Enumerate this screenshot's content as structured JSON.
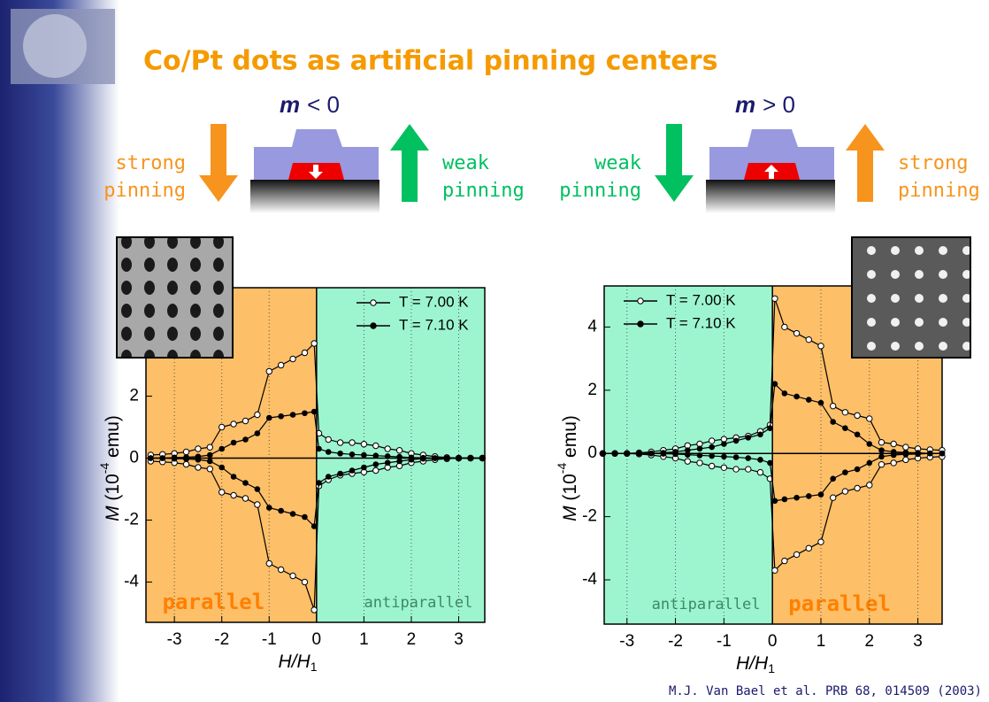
{
  "title": "Co/Pt dots as artificial pinning centers",
  "diagrams": [
    {
      "symbol": "m",
      "relation": "< 0",
      "left": {
        "lines": [
          "strong",
          "pinning"
        ],
        "color": "#f7941d",
        "direction": "down"
      },
      "right": {
        "lines": [
          "weak",
          "pinning"
        ],
        "color": "#00c060",
        "direction": "up"
      },
      "moment": "down"
    },
    {
      "symbol": "m",
      "relation": "> 0",
      "left": {
        "lines": [
          "weak",
          "pinning"
        ],
        "color": "#00c060",
        "direction": "down"
      },
      "right": {
        "lines": [
          "strong",
          "pinning"
        ],
        "color": "#f7941d",
        "direction": "up"
      },
      "moment": "up"
    }
  ],
  "citation": "M.J. Van Bael et al. PRB 68, 014509 (2003)",
  "chart_data": [
    {
      "type": "line",
      "xlabel": [
        "H/H",
        "1"
      ],
      "ylabel": [
        "M",
        " (10",
        "-4",
        " emu)"
      ],
      "xlim": [
        -3.6,
        3.55
      ],
      "ylim": [
        -5.3,
        5.5
      ],
      "xticks": [
        -3,
        -2,
        -1,
        0,
        1,
        2,
        3
      ],
      "yticks": [
        -4,
        -2,
        0,
        2
      ],
      "grid": "dotted-x",
      "legend": "upper right",
      "regions": [
        {
          "label": "parallel",
          "color": "#fdbf68",
          "label_color": "#ff8000",
          "side": "negative"
        },
        {
          "label": "antiparallel",
          "color": "#9df5cf",
          "label_color": "#3a8a66",
          "side": "positive"
        }
      ],
      "x": [
        -3.5,
        -3.25,
        -3,
        -2.75,
        -2.5,
        -2.25,
        -2,
        -1.75,
        -1.5,
        -1.25,
        -1,
        -0.75,
        -0.5,
        -0.25,
        -0.05,
        0.05,
        0.25,
        0.5,
        0.75,
        1,
        1.25,
        1.5,
        1.75,
        2,
        2.25,
        2.5,
        2.75,
        3,
        3.25,
        3.5
      ],
      "series": [
        {
          "name": "T = 7.00 K",
          "color": "#000000",
          "marker": "open",
          "values": [
            0.1,
            0.12,
            0.15,
            0.2,
            0.3,
            0.35,
            1.0,
            1.1,
            1.2,
            1.4,
            2.8,
            3.0,
            3.2,
            3.4,
            3.7,
            0.8,
            0.6,
            0.5,
            0.5,
            0.45,
            0.4,
            0.3,
            0.25,
            0.15,
            0.1,
            0.05,
            0.02,
            0,
            0,
            0
          ],
          "lower": [
            -0.1,
            -0.12,
            -0.15,
            -0.2,
            -0.3,
            -0.35,
            -1.1,
            -1.2,
            -1.3,
            -1.5,
            -3.4,
            -3.6,
            -3.8,
            -4.0,
            -4.9,
            -0.9,
            -0.7,
            -0.55,
            -0.5,
            -0.45,
            -0.4,
            -0.3,
            -0.25,
            -0.15,
            -0.1,
            -0.05,
            -0.02,
            0,
            0,
            0
          ]
        },
        {
          "name": "T = 7.10 K",
          "color": "#000000",
          "marker": "filled",
          "values": [
            0,
            0,
            0.02,
            0.03,
            0.05,
            0.1,
            0.3,
            0.5,
            0.6,
            0.8,
            1.3,
            1.35,
            1.4,
            1.45,
            1.5,
            0.3,
            0.2,
            0.15,
            0.12,
            0.1,
            0.08,
            0.06,
            0.04,
            0.02,
            0.01,
            0,
            0,
            0,
            0,
            0
          ],
          "lower": [
            0,
            0,
            -0.02,
            -0.03,
            -0.05,
            -0.1,
            -0.3,
            -0.6,
            -0.8,
            -1.0,
            -1.6,
            -1.7,
            -1.8,
            -1.9,
            -2.2,
            -0.8,
            -0.6,
            -0.5,
            -0.4,
            -0.3,
            -0.2,
            -0.15,
            -0.1,
            -0.05,
            -0.02,
            0,
            0,
            0,
            0,
            0
          ]
        }
      ]
    },
    {
      "type": "line",
      "xlabel": [
        "H/H",
        "1"
      ],
      "ylabel": [
        "M",
        " (10",
        "-4",
        " emu)"
      ],
      "xlim": [
        -3.47,
        3.5
      ],
      "ylim": [
        -5.4,
        5.3
      ],
      "xticks": [
        -3,
        -2,
        -1,
        0,
        1,
        2,
        3
      ],
      "yticks": [
        -4,
        -2,
        0,
        2,
        4
      ],
      "grid": "dotted-x",
      "legend": "upper left",
      "regions": [
        {
          "label": "antiparallel",
          "color": "#9df5cf",
          "label_color": "#3a8a66",
          "side": "negative"
        },
        {
          "label": "parallel",
          "color": "#fdbf68",
          "label_color": "#ff8000",
          "side": "positive"
        }
      ],
      "x": [
        -3.5,
        -3.25,
        -3,
        -2.75,
        -2.5,
        -2.25,
        -2,
        -1.75,
        -1.5,
        -1.25,
        -1,
        -0.75,
        -0.5,
        -0.25,
        -0.05,
        0.05,
        0.25,
        0.5,
        0.75,
        1,
        1.25,
        1.5,
        1.75,
        2,
        2.25,
        2.5,
        2.75,
        3,
        3.25,
        3.5
      ],
      "series": [
        {
          "name": "T = 7.00 K",
          "color": "#000000",
          "marker": "open",
          "values": [
            0,
            0,
            0,
            0.02,
            0.05,
            0.1,
            0.15,
            0.25,
            0.3,
            0.4,
            0.45,
            0.5,
            0.55,
            0.7,
            0.9,
            4.9,
            4.0,
            3.8,
            3.6,
            3.4,
            1.5,
            1.3,
            1.2,
            1.1,
            0.35,
            0.3,
            0.2,
            0.15,
            0.12,
            0.1
          ],
          "lower": [
            0,
            0,
            0,
            -0.02,
            -0.05,
            -0.1,
            -0.15,
            -0.25,
            -0.3,
            -0.4,
            -0.45,
            -0.5,
            -0.5,
            -0.6,
            -0.8,
            -3.7,
            -3.4,
            -3.2,
            -3.0,
            -2.8,
            -1.4,
            -1.2,
            -1.1,
            -1.0,
            -0.35,
            -0.3,
            -0.2,
            -0.15,
            -0.12,
            -0.1
          ]
        },
        {
          "name": "T = 7.10 K",
          "color": "#000000",
          "marker": "filled",
          "values": [
            0,
            0,
            0,
            0,
            0,
            0.02,
            0.05,
            0.1,
            0.15,
            0.2,
            0.3,
            0.4,
            0.5,
            0.6,
            0.8,
            2.2,
            1.9,
            1.8,
            1.7,
            1.6,
            1.0,
            0.8,
            0.6,
            0.3,
            0.1,
            0.05,
            0.03,
            0.02,
            0,
            0
          ],
          "lower": [
            0,
            0,
            0,
            0,
            0,
            -0.01,
            -0.02,
            -0.04,
            -0.06,
            -0.08,
            -0.1,
            -0.12,
            -0.15,
            -0.2,
            -0.3,
            -1.5,
            -1.45,
            -1.4,
            -1.35,
            -1.3,
            -0.8,
            -0.6,
            -0.5,
            -0.3,
            -0.1,
            -0.05,
            -0.03,
            -0.02,
            0,
            0
          ]
        }
      ]
    }
  ]
}
